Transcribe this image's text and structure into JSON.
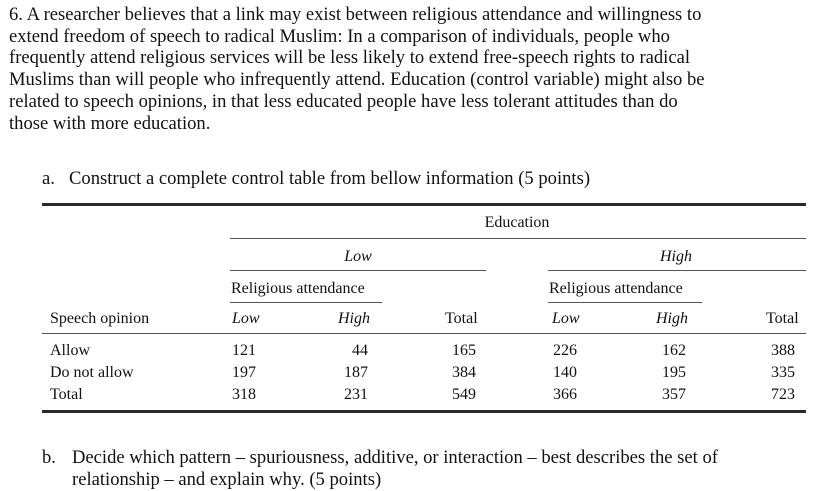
{
  "question": {
    "text_lines": [
      "6. A researcher believes that a link may exist between religious attendance and willingness to",
      "extend freedom of speech to radical Muslim: In a comparison of individuals, people who",
      "frequently attend religious services will be less likely to extend free-speech rights to radical",
      "Muslims than will people who infrequently attend. Education (control variable) might also be",
      "related to speech opinions, in that less educated people have less tolerant attitudes than do",
      "those with more education."
    ]
  },
  "part_a": {
    "letter": "a.",
    "text": "Construct a complete control table from bellow information (5 points)"
  },
  "table": {
    "control_label": "Education",
    "group_low": "Low",
    "group_high": "High",
    "religious_attendance_low_group": "Religious attendance",
    "religious_attendance_high_group": "Religious attendance",
    "stub_header": "Speech opinion",
    "col_headers": [
      "Low",
      "High",
      "Total",
      "Low",
      "High",
      "Total"
    ],
    "rows": [
      {
        "label": "Allow",
        "values": [
          "121",
          "44",
          "165",
          "226",
          "162",
          "388"
        ]
      },
      {
        "label": "Do not allow",
        "values": [
          "197",
          "187",
          "384",
          "140",
          "195",
          "335"
        ]
      },
      {
        "label": "Total",
        "values": [
          "318",
          "231",
          "549",
          "366",
          "357",
          "723"
        ]
      }
    ]
  },
  "part_b": {
    "letter": "b.",
    "text": "Decide which pattern – spuriousness, additive, or interaction – best describes the set of relationship – and explain why. (5 points)"
  }
}
